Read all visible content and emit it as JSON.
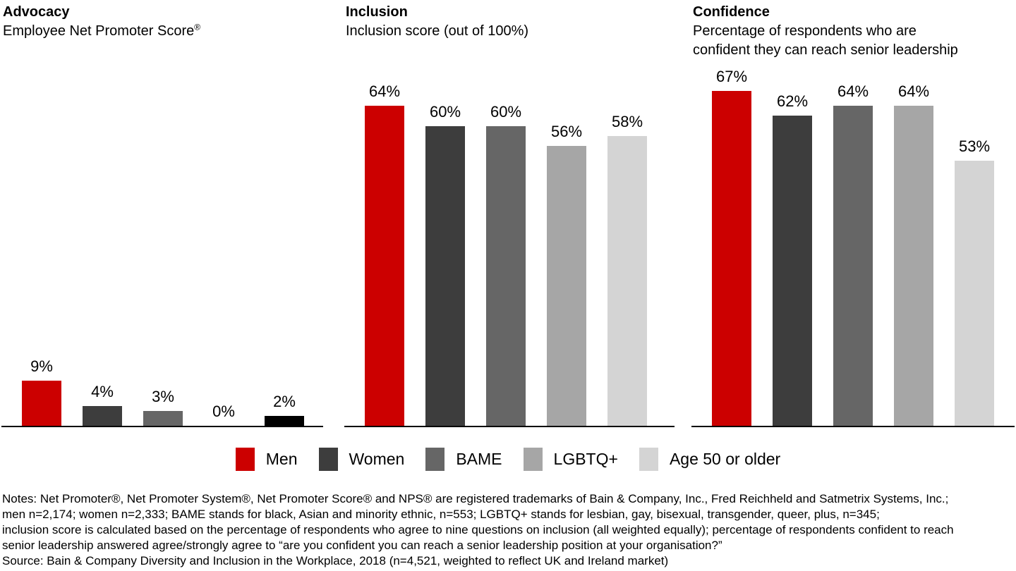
{
  "panels": [
    {
      "title": "Advocacy",
      "subtitle": [
        "Employee Net Promoter Score"
      ],
      "subtitle_sup": "®"
    },
    {
      "title": "Inclusion",
      "subtitle": [
        "Inclusion score (out of 100%)"
      ]
    },
    {
      "title": "Confidence",
      "subtitle": [
        "Percentage of respondents who are",
        "confident they can reach senior leadership"
      ]
    }
  ],
  "chart_data": [
    {
      "type": "bar",
      "title": "Advocacy",
      "subtitle": "Employee Net Promoter Score®",
      "categories": [
        "Men",
        "Women",
        "BAME",
        "LGBTQ+",
        "Age 50 or older"
      ],
      "values": [
        9,
        4,
        3,
        0,
        2
      ],
      "value_labels": [
        "9%",
        "4%",
        "3%",
        "0%",
        "2%"
      ],
      "colors": [
        "#cc0000",
        "#3d3d3d",
        "#666666",
        "#a6a6a6",
        "#000000"
      ],
      "xlabel": "",
      "ylabel": "",
      "ylim": [
        0,
        85
      ],
      "grid": false,
      "data_labels": "above bars"
    },
    {
      "type": "bar",
      "title": "Inclusion",
      "subtitle": "Inclusion score (out of 100%)",
      "categories": [
        "Men",
        "Women",
        "BAME",
        "LGBTQ+",
        "Age 50 or older"
      ],
      "values": [
        64,
        60,
        60,
        56,
        58
      ],
      "value_labels": [
        "64%",
        "60%",
        "60%",
        "56%",
        "58%"
      ],
      "colors": [
        "#cc0000",
        "#3d3d3d",
        "#666666",
        "#a6a6a6",
        "#d4d4d4"
      ],
      "xlabel": "",
      "ylabel": "",
      "ylim": [
        0,
        85
      ],
      "grid": false,
      "data_labels": "above bars"
    },
    {
      "type": "bar",
      "title": "Confidence",
      "subtitle": "Percentage of respondents who are confident they can reach senior leadership",
      "categories": [
        "Men",
        "Women",
        "BAME",
        "LGBTQ+",
        "Age 50 or older"
      ],
      "values": [
        67,
        62,
        64,
        64,
        53
      ],
      "value_labels": [
        "67%",
        "62%",
        "64%",
        "64%",
        "53%"
      ],
      "colors": [
        "#cc0000",
        "#3d3d3d",
        "#666666",
        "#a6a6a6",
        "#d4d4d4"
      ],
      "xlabel": "",
      "ylabel": "",
      "ylim": [
        0,
        85
      ],
      "grid": false,
      "data_labels": "above bars"
    }
  ],
  "legend": {
    "position": "bottom center",
    "items": [
      {
        "label": "Men",
        "color": "#cc0000"
      },
      {
        "label": "Women",
        "color": "#3d3d3d"
      },
      {
        "label": "BAME",
        "color": "#666666"
      },
      {
        "label": "LGBTQ+",
        "color": "#a6a6a6"
      },
      {
        "label": "Age 50 or older",
        "color": "#d4d4d4"
      }
    ]
  },
  "notes": {
    "lines": [
      "Notes: Net Promoter®, Net Promoter System®, Net Promoter Score® and NPS® are registered trademarks of Bain & Company, Inc., Fred Reichheld and Satmetrix Systems, Inc.;",
      "men n=2,174; women n=2,333; BAME stands for black, Asian and minority ethnic, n=553; LGBTQ+ stands for lesbian, gay, bisexual, transgender, queer, plus, n=345;",
      "inclusion score is calculated based on the percentage of respondents who agree to nine questions on inclusion (all weighted equally); percentage of respondents confident to reach",
      "senior leadership answered agree/strongly agree to “are you confident you can reach a senior leadership position at your organisation?”",
      "Source: Bain & Company Diversity and Inclusion in the Workplace, 2018 (n=4,521, weighted to reflect UK and Ireland market)"
    ]
  }
}
